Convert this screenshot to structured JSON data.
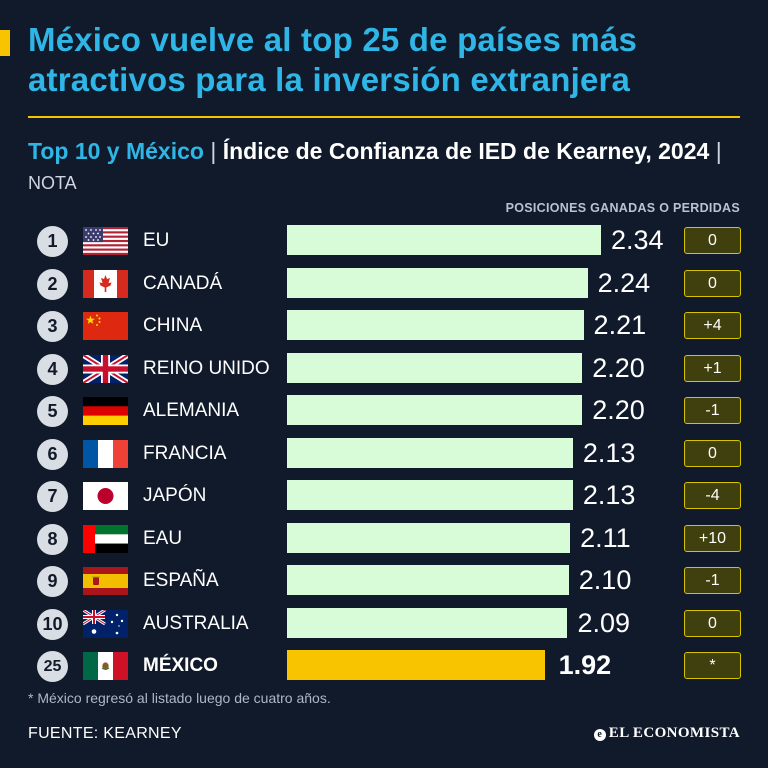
{
  "header": {
    "title": "México vuelve al top 25 de países más atractivos para la inversión extranjera",
    "subtitle_highlight": "Top 10 y México",
    "subtitle_separator": " | ",
    "subtitle_main": "Índice de Confianza de IED de Kearney, 2024",
    "subtitle_note": "NOTA",
    "column_header": "POSICIONES GANADAS O PERDIDAS",
    "accent_color": "#f8c400",
    "title_color": "#2fb6e6"
  },
  "chart_data": {
    "type": "bar",
    "orientation": "horizontal",
    "title": "Índice de Confianza de IED de Kearney, 2024",
    "xlim": [
      0,
      2.6
    ],
    "categories": [
      "EU",
      "CANADÁ",
      "CHINA",
      "REINO UNIDO",
      "ALEMANIA",
      "FRANCIA",
      "JAPÓN",
      "EAU",
      "ESPAÑA",
      "AUSTRALIA",
      "MÉXICO"
    ],
    "ranks": [
      "1",
      "2",
      "3",
      "4",
      "5",
      "6",
      "7",
      "8",
      "9",
      "10",
      "25"
    ],
    "values": [
      2.34,
      2.24,
      2.21,
      2.2,
      2.2,
      2.13,
      2.13,
      2.11,
      2.1,
      2.09,
      1.92
    ],
    "value_labels": [
      "2.34",
      "2.24",
      "2.21",
      "2.20",
      "2.20",
      "2.13",
      "2.13",
      "2.11",
      "2.10",
      "2.09",
      "1.92"
    ],
    "position_changes": [
      "0",
      "0",
      "+4",
      "+1",
      "-1",
      "0",
      "-4",
      "+10",
      "-1",
      "0",
      "*"
    ],
    "flags": [
      "usa-flag-icon",
      "canada-flag-icon",
      "china-flag-icon",
      "uk-flag-icon",
      "germany-flag-icon",
      "france-flag-icon",
      "japan-flag-icon",
      "uae-flag-icon",
      "spain-flag-icon",
      "australia-flag-icon",
      "mexico-flag-icon"
    ],
    "highlight_index": 10,
    "bar_color": "#d8fbd8",
    "highlight_color": "#f8c400"
  },
  "footer": {
    "footnote": "* México regresó al listado luego de cuatro años.",
    "source": "FUENTE: KEARNEY",
    "brand": "EL ECONOMISTA"
  }
}
